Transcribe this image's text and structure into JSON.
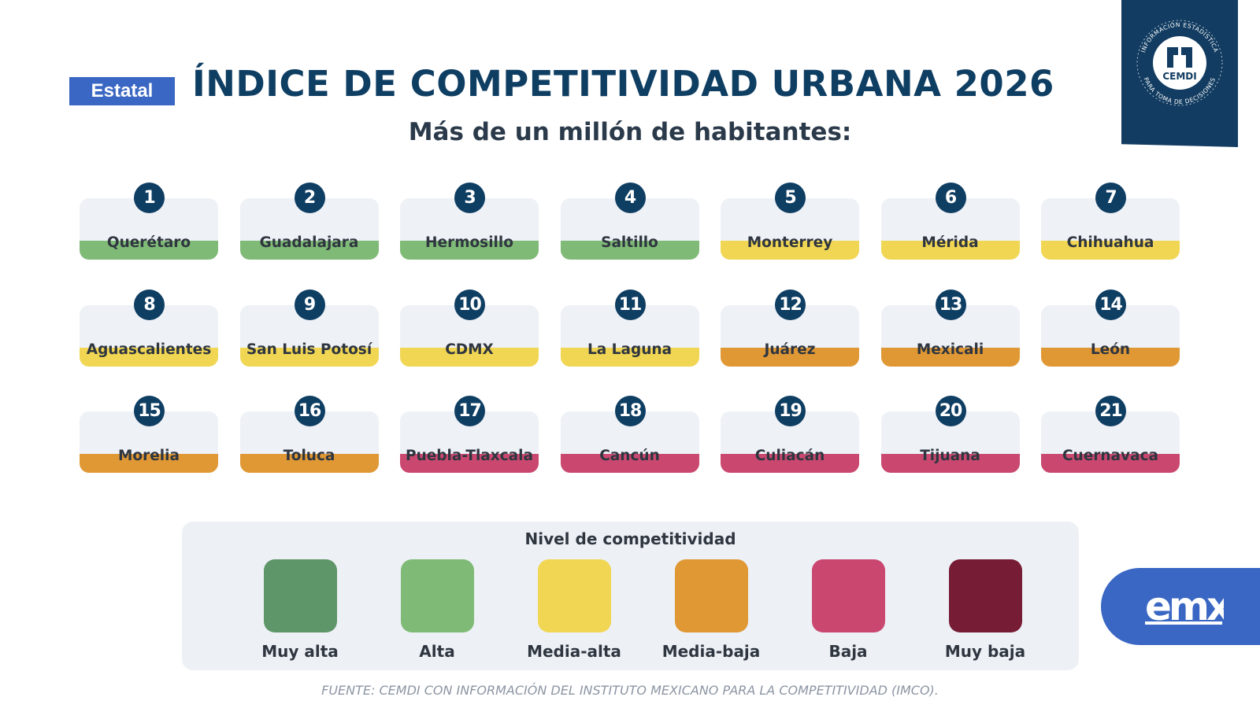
{
  "header": {
    "tag": "Estatal",
    "title": "ÍNDICE DE COMPETITIVIDAD URBANA 2026",
    "subtitle": "Más de un millón de habitantes:"
  },
  "logo": {
    "name": "CEMDI",
    "arc_top": "INFORMACIÓN ESTADÍSTICA",
    "arc_bottom": "PARA TOMA DE DECISIONES",
    "color": "#123c61"
  },
  "levels": [
    {
      "label": "Muy alta",
      "color": "#5e9669"
    },
    {
      "label": "Alta",
      "color": "#7fbb76"
    },
    {
      "label": "Media-alta",
      "color": "#f1d653"
    },
    {
      "label": "Media-baja",
      "color": "#e09834"
    },
    {
      "label": "Baja",
      "color": "#ca4870"
    },
    {
      "label": "Muy baja",
      "color": "#771c35"
    }
  ],
  "cities": [
    {
      "rank": "1",
      "name": "Querétaro",
      "level": 1
    },
    {
      "rank": "2",
      "name": "Guadalajara",
      "level": 1
    },
    {
      "rank": "3",
      "name": "Hermosillo",
      "level": 1
    },
    {
      "rank": "4",
      "name": "Saltillo",
      "level": 1
    },
    {
      "rank": "5",
      "name": "Monterrey",
      "level": 2
    },
    {
      "rank": "6",
      "name": "Mérida",
      "level": 2
    },
    {
      "rank": "7",
      "name": "Chihuahua",
      "level": 2
    },
    {
      "rank": "8",
      "name": "Aguascalientes",
      "level": 2
    },
    {
      "rank": "9",
      "name": "San Luis Potosí",
      "level": 2
    },
    {
      "rank": "10",
      "name": "CDMX",
      "level": 2
    },
    {
      "rank": "11",
      "name": "La Laguna",
      "level": 2
    },
    {
      "rank": "12",
      "name": "Juárez",
      "level": 3
    },
    {
      "rank": "13",
      "name": "Mexicali",
      "level": 3
    },
    {
      "rank": "14",
      "name": "León",
      "level": 3
    },
    {
      "rank": "15",
      "name": "Morelia",
      "level": 3
    },
    {
      "rank": "16",
      "name": "Toluca",
      "level": 3
    },
    {
      "rank": "17",
      "name": "Puebla-Tlaxcala",
      "level": 4
    },
    {
      "rank": "18",
      "name": "Cancún",
      "level": 4
    },
    {
      "rank": "19",
      "name": "Culiacán",
      "level": 4
    },
    {
      "rank": "20",
      "name": "Tijuana",
      "level": 4
    },
    {
      "rank": "21",
      "name": "Cuernavaca",
      "level": 4
    }
  ],
  "legend": {
    "title": "Nivel de competitividad"
  },
  "watermark": {
    "text": "emx",
    "color": "#3a67c3"
  },
  "source": "FUENTE: CEMDI CON INFORMACIÓN DEL INSTITUTO MEXICANO PARA LA COMPETITIVIDAD (IMCO)."
}
